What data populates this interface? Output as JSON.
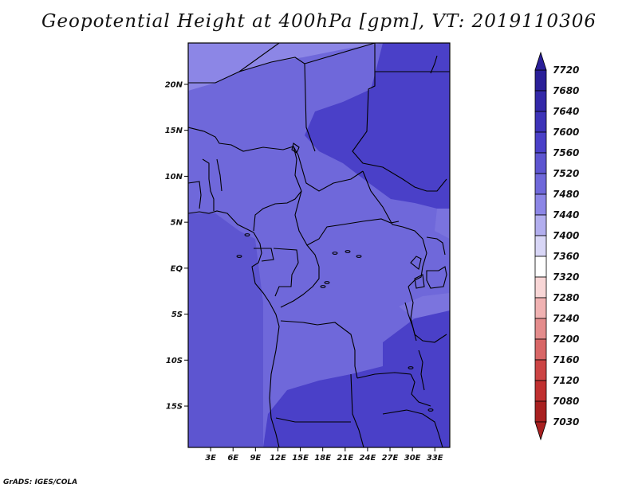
{
  "title": "Geopotential Height at 400hPa [gpm], VT: 2019110306",
  "credit": "GrADS: IGES/COLA",
  "map": {
    "lat_ticks": [
      "20N",
      "15N",
      "10N",
      "5N",
      "EQ",
      "5S",
      "10S",
      "15S"
    ],
    "lat_values": [
      20,
      15,
      10,
      5,
      0,
      -5,
      -10,
      -15
    ],
    "lon_ticks": [
      "3E",
      "6E",
      "9E",
      "12E",
      "15E",
      "18E",
      "21E",
      "24E",
      "27E",
      "30E",
      "33E"
    ],
    "lon_values": [
      3,
      6,
      9,
      12,
      15,
      18,
      21,
      24,
      27,
      30,
      33
    ],
    "lon_range": [
      0,
      35
    ],
    "lat_range": [
      -19.5,
      24.5
    ]
  },
  "colorbar": {
    "labels": [
      "7720",
      "7680",
      "7640",
      "7600",
      "7560",
      "7520",
      "7480",
      "7440",
      "7400",
      "7360",
      "7320",
      "7280",
      "7240",
      "7200",
      "7160",
      "7120",
      "7080",
      "7030"
    ],
    "colors": [
      "#2a1f98",
      "#3328a8",
      "#3d33b8",
      "#4a40c8",
      "#5d55d0",
      "#6f68da",
      "#8c86e6",
      "#b2aeee",
      "#d8d6f6",
      "#ffffff",
      "#f8d6d6",
      "#f0b2b2",
      "#e48c8c",
      "#d86666",
      "#cc4444",
      "#c03030",
      "#a82020"
    ],
    "max_color": "#2a1f98",
    "min_color": "#a82020"
  }
}
